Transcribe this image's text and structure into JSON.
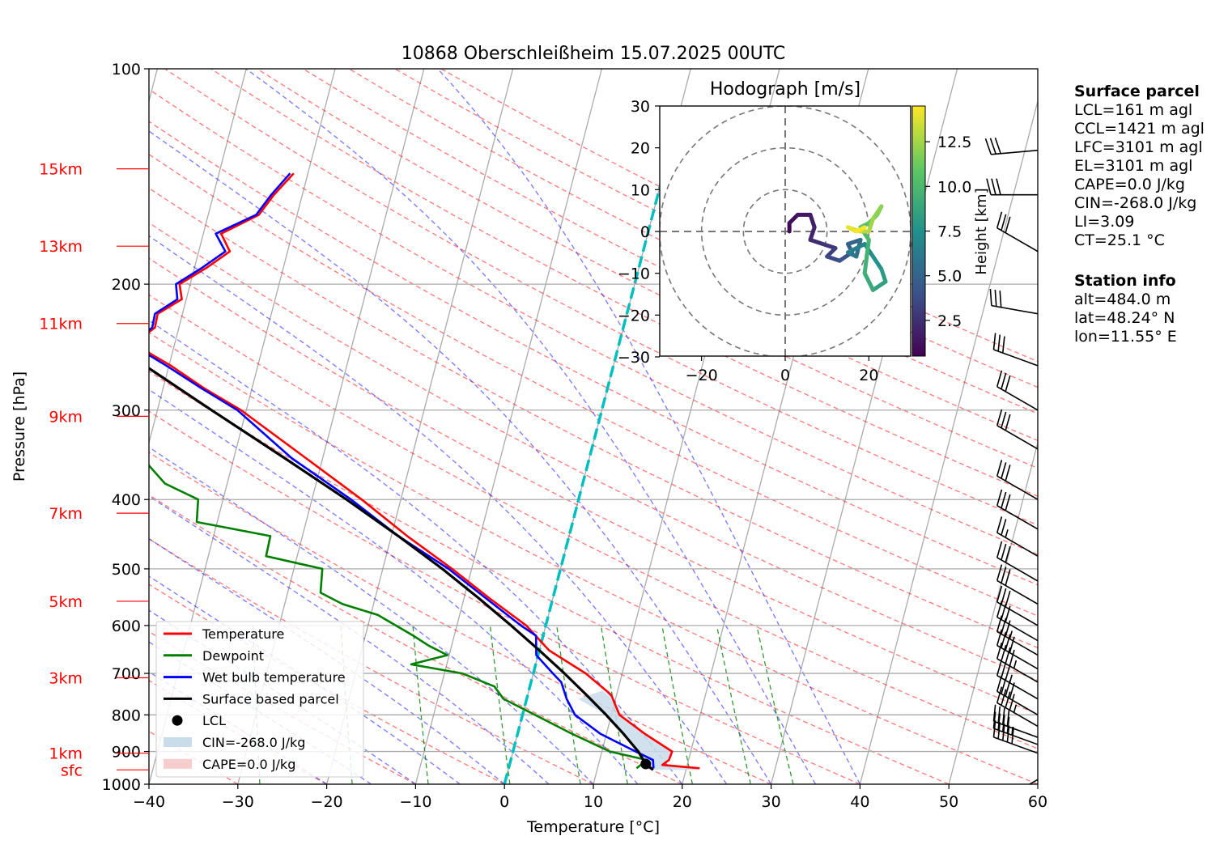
{
  "title": "10868 Oberschleißheim 15.07.2025 00UTC",
  "chart_data": {
    "type": "skew-t",
    "xlabel": "Temperature [°C]",
    "ylabel": "Pressure [hPa]",
    "xlim": [
      -40,
      60
    ],
    "ylim": [
      1000,
      100
    ],
    "y_log_scale": true,
    "x_ticks": [
      "−40",
      "−30",
      "−20",
      "−10",
      "0",
      "10",
      "20",
      "30",
      "40",
      "50",
      "60"
    ],
    "y_ticks": [
      "100",
      "200",
      "300",
      "400",
      "500",
      "600",
      "700",
      "800",
      "900",
      "1000"
    ],
    "grid": true,
    "height_labels": [
      {
        "label": "15km",
        "p": 138
      },
      {
        "label": "13km",
        "p": 177
      },
      {
        "label": "11km",
        "p": 227
      },
      {
        "label": "9km",
        "p": 306
      },
      {
        "label": "7km",
        "p": 418
      },
      {
        "label": "5km",
        "p": 555
      },
      {
        "label": "3km",
        "p": 710
      },
      {
        "label": "1km",
        "p": 905
      },
      {
        "label": "sfc",
        "p": 955
      }
    ],
    "legend": {
      "placement": "lower-left",
      "entries": [
        {
          "label": "Temperature",
          "color": "#ff0000",
          "kind": "line"
        },
        {
          "label": "Dewpoint",
          "color": "#008000",
          "kind": "line"
        },
        {
          "label": "Wet bulb temperature",
          "color": "#0000ff",
          "kind": "line"
        },
        {
          "label": "Surface based parcel",
          "color": "#000000",
          "kind": "line"
        },
        {
          "label": "LCL",
          "color": "#000000",
          "kind": "dot"
        },
        {
          "label": "CIN=-268.0 J/kg",
          "color": "#c9dcea",
          "kind": "patch"
        },
        {
          "label": "CAPE=0.0 J/kg",
          "color": "#f6cccc",
          "kind": "patch"
        }
      ]
    },
    "series": [
      {
        "name": "Temperature",
        "color": "#ff0000",
        "points": [
          [
            950,
            21.5
          ],
          [
            940,
            17.2
          ],
          [
            925,
            17.8
          ],
          [
            900,
            17.9
          ],
          [
            850,
            14.3
          ],
          [
            800,
            10.9
          ],
          [
            750,
            9.4
          ],
          [
            700,
            5.9
          ],
          [
            650,
            1.1
          ],
          [
            600,
            -2.2
          ],
          [
            550,
            -7.1
          ],
          [
            500,
            -12.2
          ],
          [
            450,
            -18.2
          ],
          [
            400,
            -24.4
          ],
          [
            350,
            -31.9
          ],
          [
            300,
            -40.6
          ],
          [
            280,
            -45.3
          ],
          [
            260,
            -49.8
          ],
          [
            250,
            -52.5
          ],
          [
            240,
            -54.3
          ],
          [
            230,
            -52.7
          ],
          [
            220,
            -52.8
          ],
          [
            210,
            -50.5
          ],
          [
            200,
            -51.2
          ],
          [
            190,
            -48.7
          ],
          [
            180,
            -46.5
          ],
          [
            170,
            -48.0
          ],
          [
            160,
            -44.3
          ],
          [
            150,
            -43.2
          ],
          [
            140,
            -41.6
          ]
        ]
      },
      {
        "name": "Dewpoint",
        "color": "#008000",
        "points": [
          [
            950,
            14.4
          ],
          [
            925,
            15.3
          ],
          [
            900,
            10.9
          ],
          [
            850,
            6.1
          ],
          [
            800,
            1.4
          ],
          [
            760,
            -2.6
          ],
          [
            730,
            -4.0
          ],
          [
            700,
            -8.0
          ],
          [
            680,
            -14.0
          ],
          [
            660,
            -10.2
          ],
          [
            640,
            -12.6
          ],
          [
            620,
            -14.6
          ],
          [
            580,
            -19.2
          ],
          [
            560,
            -23.5
          ],
          [
            540,
            -26.3
          ],
          [
            500,
            -26.8
          ],
          [
            480,
            -33.5
          ],
          [
            450,
            -33.6
          ],
          [
            430,
            -42.3
          ],
          [
            400,
            -42.8
          ],
          [
            380,
            -47.0
          ],
          [
            350,
            -50.3
          ],
          [
            330,
            -54.5
          ],
          [
            300,
            -57.0
          ],
          [
            280,
            -64.8
          ],
          [
            270,
            -66.5
          ],
          [
            260,
            -68.5
          ],
          [
            250,
            -60.0
          ],
          [
            240,
            -69.0
          ],
          [
            230,
            -66.2
          ],
          [
            220,
            -74.0
          ],
          [
            200,
            -74.3
          ],
          [
            180,
            -79.0
          ],
          [
            165,
            -80.5
          ],
          [
            150,
            -79.5
          ],
          [
            140,
            -78.0
          ],
          [
            135,
            -77.5
          ]
        ]
      },
      {
        "name": "Wet bulb temperature",
        "color": "#0000ff",
        "points": [
          [
            950,
            16.3
          ],
          [
            925,
            16.0
          ],
          [
            900,
            13.8
          ],
          [
            850,
            9.3
          ],
          [
            800,
            5.9
          ],
          [
            760,
            4.5
          ],
          [
            720,
            3.4
          ],
          [
            700,
            2.2
          ],
          [
            660,
            -0.2
          ],
          [
            620,
            -0.8
          ],
          [
            600,
            -2.8
          ],
          [
            550,
            -7.5
          ],
          [
            500,
            -12.6
          ],
          [
            450,
            -19.2
          ],
          [
            400,
            -25.6
          ],
          [
            350,
            -33.5
          ],
          [
            300,
            -41.0
          ],
          [
            280,
            -45.6
          ],
          [
            260,
            -50.3
          ],
          [
            250,
            -52.9
          ],
          [
            240,
            -54.6
          ],
          [
            230,
            -53.0
          ],
          [
            220,
            -53.1
          ],
          [
            210,
            -51.0
          ],
          [
            200,
            -51.6
          ],
          [
            190,
            -49.2
          ],
          [
            180,
            -47.0
          ],
          [
            170,
            -48.6
          ],
          [
            160,
            -44.6
          ],
          [
            150,
            -43.5
          ],
          [
            140,
            -42.0
          ]
        ]
      },
      {
        "name": "Surface based parcel",
        "color": "#000000",
        "points": [
          [
            955,
            16.3
          ],
          [
            937,
            15.3
          ],
          [
            900,
            14.1
          ],
          [
            850,
            11.9
          ],
          [
            800,
            9.4
          ],
          [
            750,
            6.6
          ],
          [
            700,
            3.5
          ],
          [
            650,
            0.0
          ],
          [
            600,
            -3.9
          ],
          [
            550,
            -8.3
          ],
          [
            500,
            -13.3
          ],
          [
            450,
            -19.2
          ],
          [
            400,
            -26.1
          ],
          [
            350,
            -34.3
          ],
          [
            300,
            -43.9
          ],
          [
            250,
            -55.1
          ],
          [
            200,
            -68.0
          ],
          [
            150,
            -82.6
          ],
          [
            138,
            -86.3
          ]
        ]
      }
    ],
    "lcl": {
      "p": 937,
      "t": 15.3
    },
    "cin_area": [
      [
        955,
        21.5
      ],
      [
        937,
        17.2
      ],
      [
        925,
        17.8
      ],
      [
        900,
        17.9
      ],
      [
        850,
        14.3
      ],
      [
        800,
        10.9
      ],
      [
        760,
        9.6
      ],
      [
        740,
        8.3
      ],
      [
        760,
        5.8
      ],
      [
        800,
        9.4
      ],
      [
        850,
        11.9
      ],
      [
        900,
        14.1
      ],
      [
        937,
        15.3
      ],
      [
        955,
        16.3
      ]
    ],
    "freezing_level_line": {
      "color": "#00bfbf",
      "from": {
        "p": 1000,
        "t": 0
      },
      "to": {
        "p": 138,
        "t": 0
      }
    },
    "wind_barbs": [
      {
        "p": 985,
        "speed_kt": 10,
        "dir": 240
      },
      {
        "p": 905,
        "speed_kt": 50,
        "dir": 290
      },
      {
        "p": 880,
        "speed_kt": 45,
        "dir": 290
      },
      {
        "p": 860,
        "speed_kt": 40,
        "dir": 290
      },
      {
        "p": 830,
        "speed_kt": 45,
        "dir": 300
      },
      {
        "p": 800,
        "speed_kt": 40,
        "dir": 300
      },
      {
        "p": 760,
        "speed_kt": 35,
        "dir": 300
      },
      {
        "p": 720,
        "speed_kt": 45,
        "dir": 300
      },
      {
        "p": 690,
        "speed_kt": 40,
        "dir": 300
      },
      {
        "p": 660,
        "speed_kt": 35,
        "dir": 300
      },
      {
        "p": 630,
        "speed_kt": 30,
        "dir": 300
      },
      {
        "p": 600,
        "speed_kt": 30,
        "dir": 300
      },
      {
        "p": 560,
        "speed_kt": 30,
        "dir": 300
      },
      {
        "p": 520,
        "speed_kt": 30,
        "dir": 300
      },
      {
        "p": 480,
        "speed_kt": 25,
        "dir": 300
      },
      {
        "p": 440,
        "speed_kt": 30,
        "dir": 300
      },
      {
        "p": 400,
        "speed_kt": 30,
        "dir": 300
      },
      {
        "p": 340,
        "speed_kt": 30,
        "dir": 300
      },
      {
        "p": 300,
        "speed_kt": 30,
        "dir": 300
      },
      {
        "p": 260,
        "speed_kt": 30,
        "dir": 290
      },
      {
        "p": 220,
        "speed_kt": 30,
        "dir": 280
      },
      {
        "p": 180,
        "speed_kt": 30,
        "dir": 300
      },
      {
        "p": 150,
        "speed_kt": 30,
        "dir": 270
      },
      {
        "p": 130,
        "speed_kt": 30,
        "dir": 265
      }
    ],
    "hodograph": {
      "title": "Hodograph [m/s]",
      "xlim": [
        -30,
        30
      ],
      "ylim": [
        -30,
        30
      ],
      "x_ticks": [
        "−20",
        "0",
        "20"
      ],
      "y_ticks": [
        "30",
        "20",
        "10",
        "0",
        "−10",
        "−20",
        "−30"
      ],
      "rings": [
        10,
        20,
        30
      ],
      "colorbar_label": "Height [km]",
      "colorbar_ticks": [
        "2.5",
        "5.0",
        "7.5",
        "10.0",
        "12.5"
      ],
      "colorbar_range": [
        0.5,
        14.5
      ],
      "trace": [
        {
          "u": 1,
          "v": 0,
          "h": 0.5
        },
        {
          "u": 1,
          "v": 2,
          "h": 0.8
        },
        {
          "u": 3,
          "v": 4,
          "h": 1.1
        },
        {
          "u": 6,
          "v": 4,
          "h": 1.4
        },
        {
          "u": 7,
          "v": 1,
          "h": 1.7
        },
        {
          "u": 6,
          "v": -2,
          "h": 2.0
        },
        {
          "u": 9,
          "v": -3,
          "h": 2.4
        },
        {
          "u": 12,
          "v": -4,
          "h": 2.8
        },
        {
          "u": 10,
          "v": -6,
          "h": 3.2
        },
        {
          "u": 13,
          "v": -7,
          "h": 3.6
        },
        {
          "u": 16,
          "v": -5,
          "h": 4.0
        },
        {
          "u": 15,
          "v": -3,
          "h": 4.5
        },
        {
          "u": 18,
          "v": -2,
          "h": 5.0
        },
        {
          "u": 17,
          "v": -6,
          "h": 5.5
        },
        {
          "u": 15,
          "v": -5,
          "h": 6.0
        },
        {
          "u": 19,
          "v": -3,
          "h": 6.5
        },
        {
          "u": 21,
          "v": -6,
          "h": 7.0
        },
        {
          "u": 23,
          "v": -9,
          "h": 7.5
        },
        {
          "u": 24,
          "v": -12,
          "h": 8.0
        },
        {
          "u": 21,
          "v": -14,
          "h": 8.5
        },
        {
          "u": 19,
          "v": -10,
          "h": 9.0
        },
        {
          "u": 20,
          "v": -2,
          "h": 9.5
        },
        {
          "u": 18,
          "v": 1,
          "h": 10.0
        },
        {
          "u": 20,
          "v": 2,
          "h": 10.5
        },
        {
          "u": 22,
          "v": 4,
          "h": 11.0
        },
        {
          "u": 23,
          "v": 6,
          "h": 11.5
        },
        {
          "u": 21,
          "v": 3,
          "h": 12.0
        },
        {
          "u": 20,
          "v": 0,
          "h": 12.5
        },
        {
          "u": 18,
          "v": 0,
          "h": 13.0
        },
        {
          "u": 15,
          "v": 1,
          "h": 13.5
        },
        {
          "u": 17,
          "v": 0,
          "h": 14.0
        },
        {
          "u": 19,
          "v": 1,
          "h": 14.5
        }
      ]
    }
  },
  "surface_parcel": {
    "header": "Surface parcel",
    "lines": [
      "LCL=161 m agl",
      "CCL=1421 m agl",
      "LFC=3101 m agl",
      "EL=3101 m agl",
      "CAPE=0.0 J/kg",
      "CIN=-268.0 J/kg",
      "LI=3.09",
      "CT=25.1 °C"
    ]
  },
  "station_info": {
    "header": "Station info",
    "lines": [
      "alt=484.0 m",
      "lat=48.24° N",
      "lon=11.55° E"
    ]
  }
}
